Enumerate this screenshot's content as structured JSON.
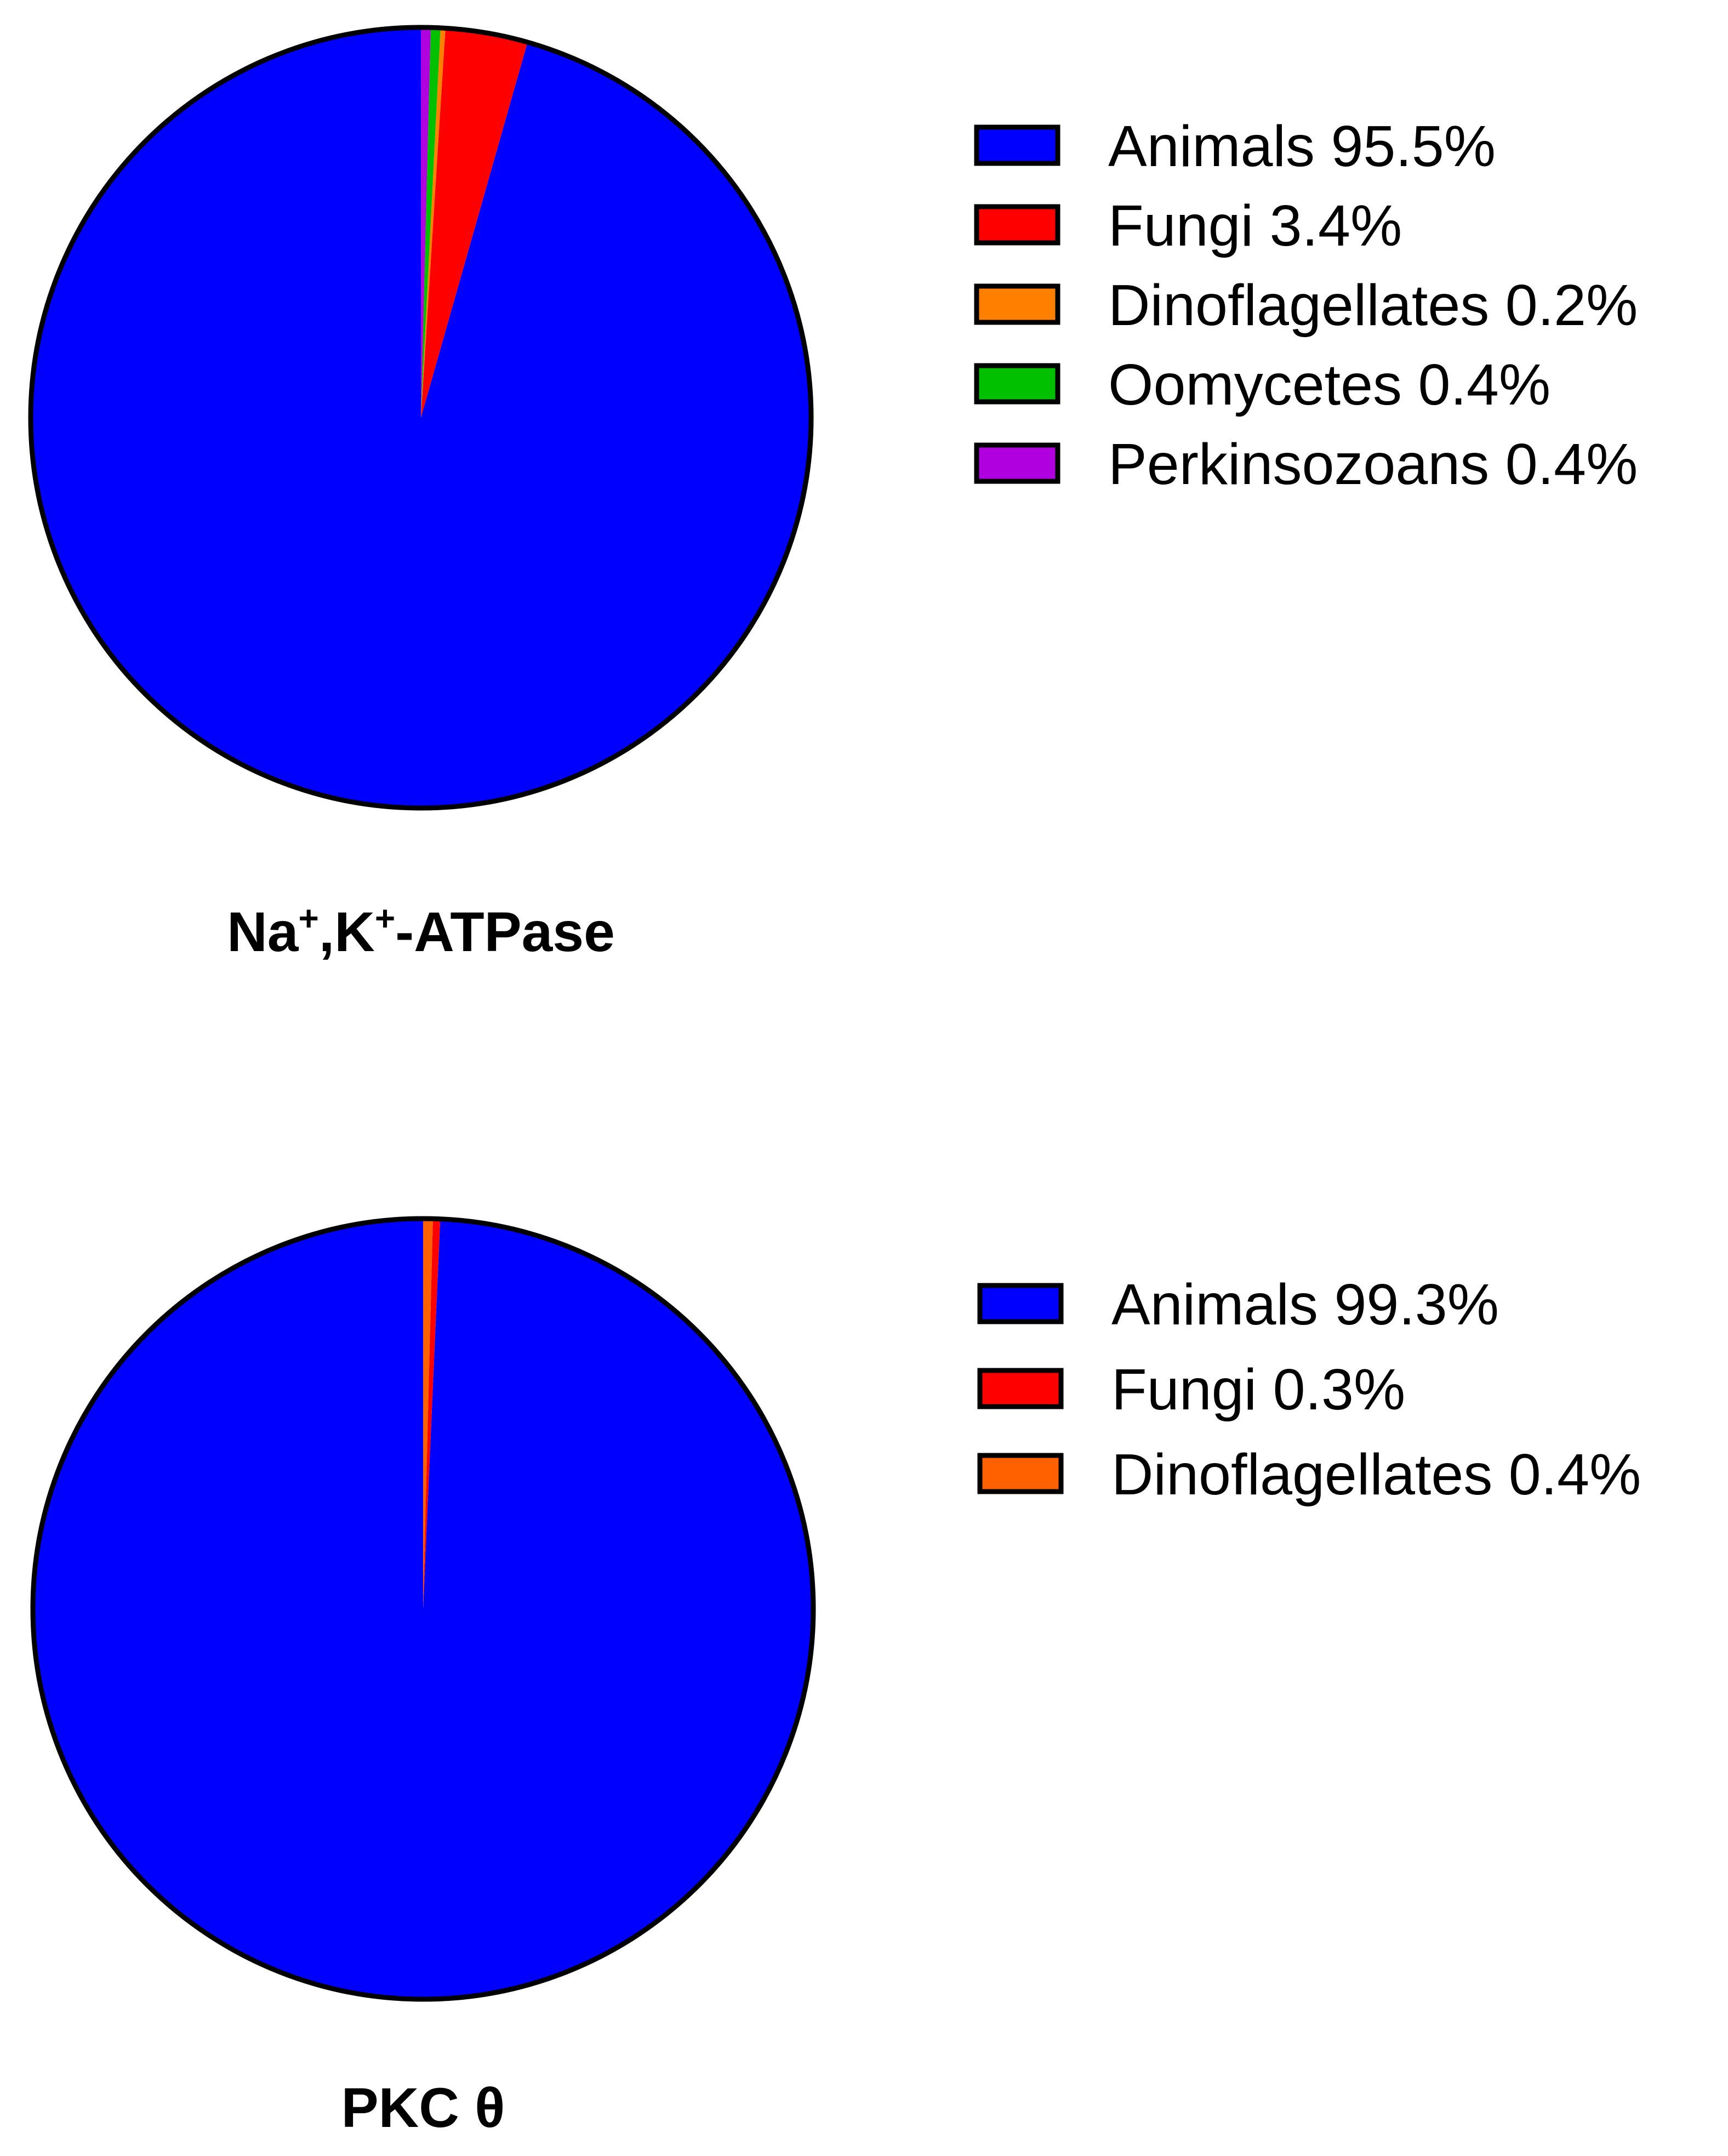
{
  "chart_data": [
    {
      "type": "pie",
      "title_parts": [
        {
          "text": "Na",
          "sup": false
        },
        {
          "text": "+",
          "sup": true
        },
        {
          "text": ",K",
          "sup": false
        },
        {
          "text": "+",
          "sup": true
        },
        {
          "text": "-ATPase",
          "sup": false
        }
      ],
      "legend": "right",
      "slices": [
        {
          "label": "Animals 95.5%",
          "value": 95.5,
          "color": "#0000ff"
        },
        {
          "label": "Fungi 3.4%",
          "value": 3.4,
          "color": "#ff0000"
        },
        {
          "label": "Dinoflagellates 0.2%",
          "value": 0.2,
          "color": "#ff8000"
        },
        {
          "label": "Oomycetes 0.4%",
          "value": 0.4,
          "color": "#00c000"
        },
        {
          "label": "Perkinsozoans 0.4%",
          "value": 0.4,
          "color": "#b000e0"
        }
      ]
    },
    {
      "type": "pie",
      "title_parts": [
        {
          "text": "PKC θ",
          "sup": false
        }
      ],
      "legend": "right",
      "slices": [
        {
          "label": "Animals 99.3%",
          "value": 99.3,
          "color": "#0000ff"
        },
        {
          "label": "Fungi 0.3%",
          "value": 0.3,
          "color": "#ff0000"
        },
        {
          "label": "Dinoflagellates 0.4%",
          "value": 0.4,
          "color": "#ff6000"
        }
      ]
    }
  ]
}
